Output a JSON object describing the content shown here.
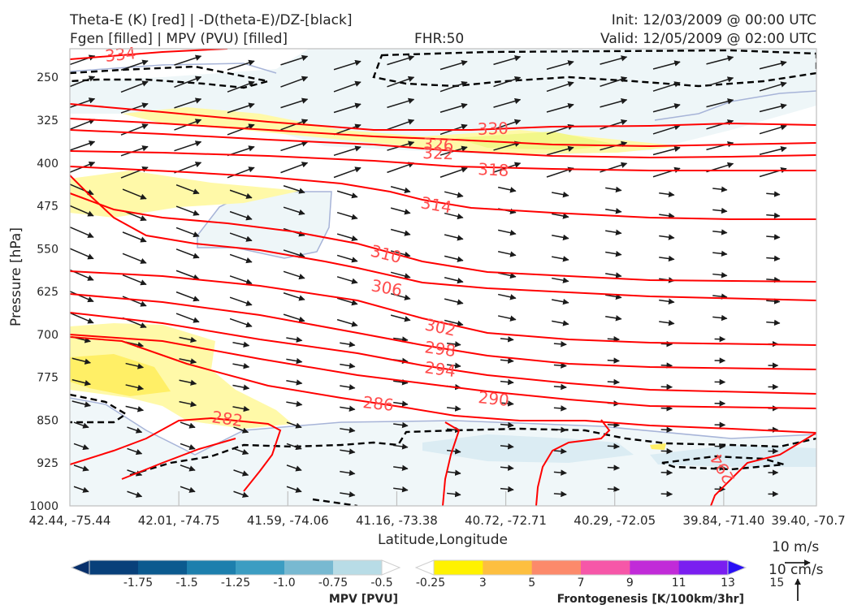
{
  "header": {
    "line1_left": "Theta-E (K) [red] | -D(theta-E)/DZ-[black]",
    "line2_left": "Fgen [filled] | MPV (PVU) [filled]",
    "fhr": "FHR:50",
    "init": "Init: 12/03/2009 @ 00:00 UTC",
    "valid": "Valid: 12/05/2009 @ 02:00 UTC"
  },
  "chart_data": {
    "type": "cross-section",
    "xlabel": "Latitude,Longitude",
    "ylabel": "Pressure [hPa]",
    "ylim": [
      1000,
      200
    ],
    "xtick_labels": [
      "42.44, -75.44",
      "42.01, -74.75",
      "41.59, -74.06",
      "41.16, -73.38",
      "40.72, -72.71",
      "40.29, -72.05",
      "39.84, -71.40",
      "39.40, -70.7"
    ],
    "ytick_labels": [
      "250",
      "325",
      "400",
      "475",
      "550",
      "625",
      "700",
      "775",
      "850",
      "925",
      "1000"
    ],
    "ytick_values": [
      250,
      325,
      400,
      475,
      550,
      625,
      700,
      775,
      850,
      925,
      1000
    ],
    "theta_e_contours": [
      {
        "label": "334",
        "values_p": [
          209,
          212,
          215
        ]
      },
      {
        "label": "330",
        "values_p": [
          322,
          330,
          340,
          335,
          328
        ]
      },
      {
        "label": "326",
        "values_p": [
          335,
          345,
          362,
          365,
          350
        ]
      },
      {
        "label": "322",
        "values_p": [
          348,
          358,
          372,
          378,
          375
        ]
      },
      {
        "label": "318",
        "values_p": [
          372,
          380,
          395,
          400,
          400
        ]
      },
      {
        "label": "314",
        "values_p": [
          392,
          420,
          455,
          510,
          530
        ]
      },
      {
        "label": "310",
        "values_p": [
          440,
          500,
          545,
          580,
          590
        ]
      },
      {
        "label": "306",
        "values_p": [
          592,
          610,
          628,
          640,
          650
        ]
      },
      {
        "label": "302",
        "values_p": [
          620,
          650,
          690,
          720,
          740
        ]
      },
      {
        "label": "298",
        "values_p": [
          680,
          705,
          730,
          755,
          775
        ]
      },
      {
        "label": "294",
        "values_p": [
          700,
          730,
          765,
          795,
          810
        ]
      },
      {
        "label": "290",
        "values_p": [
          735,
          765,
          800,
          820,
          835
        ]
      },
      {
        "label": "286",
        "values_p": [
          770,
          800,
          825,
          850,
          860
        ]
      },
      {
        "label": "282",
        "values_p": [
          840,
          855,
          870,
          880,
          885
        ]
      },
      {
        "label": "294",
        "values_p": [
          900,
          945,
          970
        ]
      }
    ],
    "colorbars": [
      {
        "title": "MPV [PVU]",
        "tick_labels": [
          "-1.75",
          "-1.5",
          "-1.25",
          "-1.0",
          "-0.75",
          "-0.5",
          "-0.25"
        ],
        "colors": [
          "#08306b",
          "#08407a",
          "#0b5a8f",
          "#1d7fad",
          "#3c9dc2",
          "#78b9d1",
          "#b8dce6",
          "#ffffff"
        ]
      },
      {
        "title": "Frontogenesis [K/100km/3hr]",
        "tick_labels": [
          "3",
          "5",
          "7",
          "9",
          "11",
          "13",
          "15"
        ],
        "colors": [
          "#ffffff",
          "#fff200",
          "#fdbf40",
          "#fc8a6b",
          "#f657a8",
          "#c12bd8",
          "#7a1ef0",
          "#2a10f5"
        ]
      }
    ],
    "reference_vectors": {
      "horizontal": "10 m/s",
      "vertical": "10 cm/s"
    }
  },
  "colors": {
    "theta_e": "#ff0000",
    "ddz": "#000000",
    "mpv_outline": "#a7b4d8",
    "mpv_fill": "#eef6f8",
    "fgen_light": "#fff9a8",
    "fgen_yellow": "#ffef66"
  }
}
